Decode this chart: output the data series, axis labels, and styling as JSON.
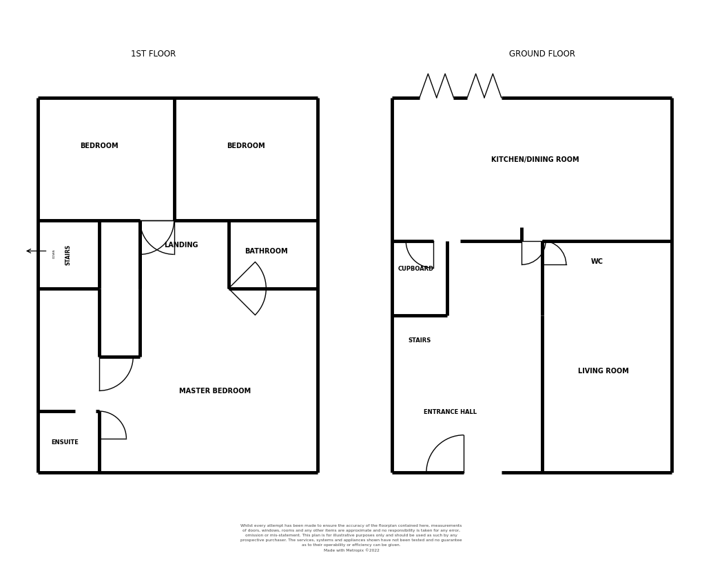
{
  "bg_color": "#ffffff",
  "wall_color": "#000000",
  "wall_lw": 3.5,
  "thin_lw": 1.0,
  "title_1st": "1ST FLOOR",
  "title_gnd": "GROUND FLOOR",
  "label_bedroom1": "BEDROOM",
  "label_bedroom2": "BEDROOM",
  "label_landing": "LANDING",
  "label_bathroom": "BATHROOM",
  "label_stairs_1st": "STAIRS",
  "label_master": "MASTER BEDROOM",
  "label_ensuite": "ENSUITE",
  "label_kitchen": "KITCHEN/DINING ROOM",
  "label_cupboard": "CUPBOARD",
  "label_wc": "WC",
  "label_stairs_gnd": "STAIRS",
  "label_entrance": "ENTRANCE HALL",
  "label_living": "LIVING ROOM",
  "disclaimer": "Whilst every attempt has been made to ensure the accuracy of the floorplan contained here, measurements\nof doors, windows, rooms and any other items are approximate and no responsibility is taken for any error,\nomission or mis-statement. This plan is for illustrative purposes only and should be used as such by any\nprospective purchaser. The services, systems and appliances shown have not been tested and no guarantee\nas to their operability or efficiency can be given.\nMade with Metropix ©2022"
}
